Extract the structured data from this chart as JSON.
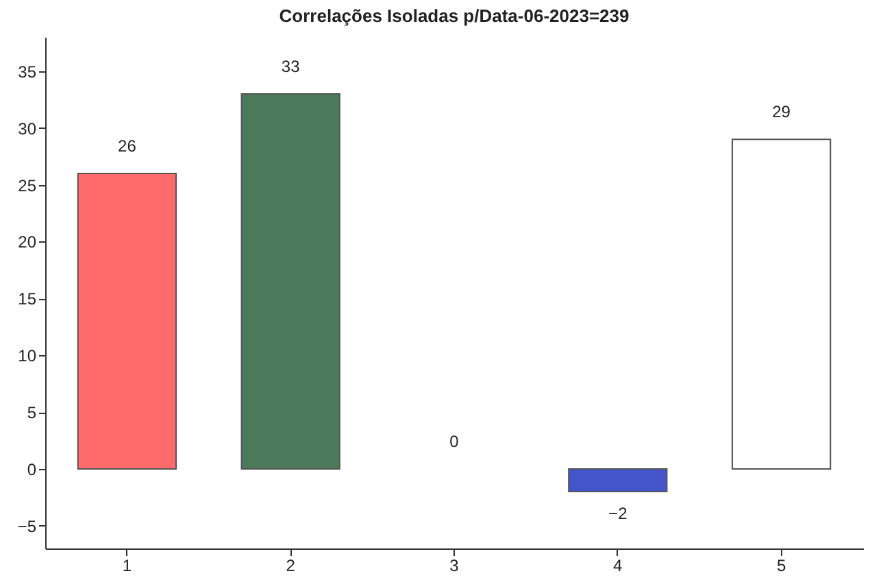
{
  "chart_data": {
    "type": "bar",
    "title": "Correlações Isoladas p/Data-06-2023=239",
    "categories": [
      "1",
      "2",
      "3",
      "4",
      "5"
    ],
    "values": [
      26,
      33,
      0,
      -2,
      29
    ],
    "colors": [
      "#ff6b6b",
      "#4a7a5a",
      "#ffffff",
      "#4455cc",
      "#ffffff"
    ],
    "ylim": [
      -7,
      38
    ],
    "yticks": [
      -5,
      0,
      5,
      10,
      15,
      20,
      25,
      30,
      35
    ],
    "grid": false,
    "data_labels": true
  }
}
